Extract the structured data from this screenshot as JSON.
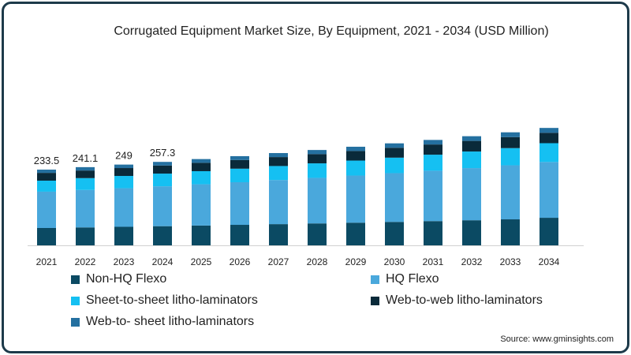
{
  "title": "Corrugated Equipment Market Size, By Equipment, 2021 - 2034 (USD Million)",
  "source": "Source: www.gminsights.com",
  "chart_data": {
    "type": "bar",
    "stacked": true,
    "title": "Corrugated Equipment Market Size, By Equipment, 2021 - 2034 (USD Million)",
    "xlabel": "",
    "ylabel": "USD Million",
    "categories": [
      "2021",
      "2022",
      "2023",
      "2024",
      "2025",
      "2026",
      "2027",
      "2028",
      "2029",
      "2030",
      "2031",
      "2032",
      "2033",
      "2034"
    ],
    "series": [
      {
        "name": "Non-HQ Flexo",
        "color": "#0b4a63",
        "values": [
          53.5,
          55.3,
          57.2,
          59.1,
          61.1,
          63.2,
          65.4,
          67.6,
          69.9,
          72.3,
          74.8,
          77.4,
          80.2,
          85.0
        ]
      },
      {
        "name": "HQ Flexo",
        "color": "#4aa8dc",
        "values": [
          112.0,
          115.4,
          119.0,
          123.0,
          127.2,
          131.4,
          136.0,
          140.5,
          145.3,
          150.3,
          155.3,
          160.8,
          166.6,
          172.0
        ]
      },
      {
        "name": "Sheet-to-sheet litho-laminators",
        "color": "#15c0f2",
        "values": [
          34.0,
          36.6,
          37.8,
          39.1,
          40.4,
          41.8,
          43.2,
          44.7,
          46.2,
          47.8,
          49.4,
          51.1,
          53.0,
          58.0
        ]
      },
      {
        "name": "Web-to-web litho-laminators",
        "color": "#0a2a3a",
        "values": [
          24.0,
          23.4,
          24.3,
          25.0,
          25.8,
          26.7,
          27.6,
          28.5,
          29.5,
          30.5,
          31.5,
          32.7,
          33.8,
          32.0
        ]
      },
      {
        "name": "Web-to- sheet litho-laminators",
        "color": "#2470a0",
        "values": [
          10.0,
          10.4,
          10.7,
          11.1,
          11.5,
          11.9,
          12.3,
          12.7,
          13.1,
          13.6,
          14.0,
          14.5,
          14.9,
          15.0
        ]
      }
    ],
    "data_labels": {
      "2021": "233.5",
      "2022": "241.1",
      "2023": "249",
      "2024": "257.3"
    },
    "ylim": [
      0,
      380
    ],
    "grid": false,
    "legend": "bottom"
  }
}
